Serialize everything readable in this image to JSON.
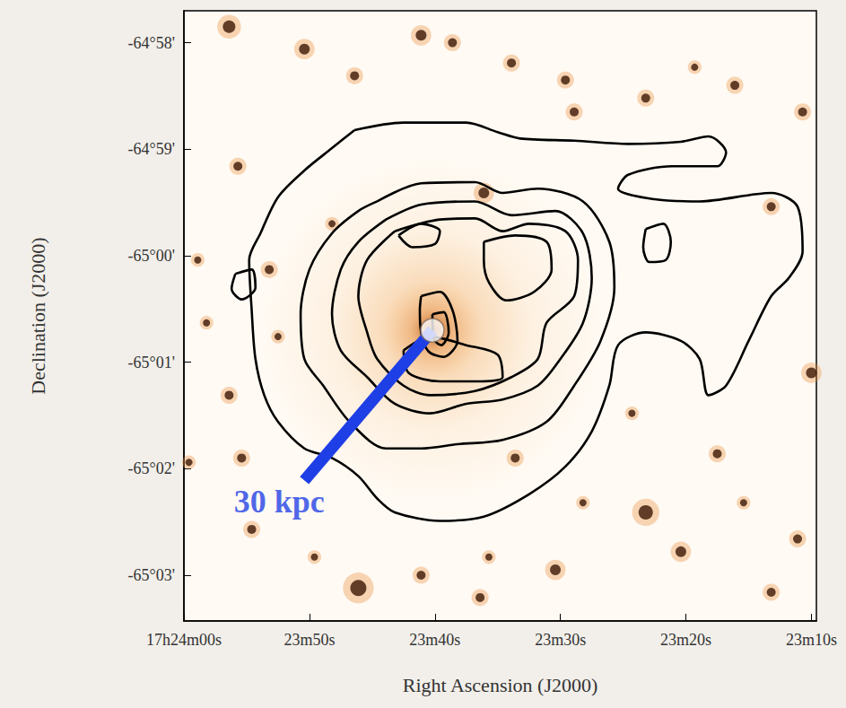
{
  "chart_data": {
    "type": "contour",
    "x_label": "Right Ascension (J2000)",
    "y_label": "Declination (J2000)",
    "xlim": [
      62640,
      62589.6
    ],
    "xticks": [
      {
        "value": 62640,
        "label": "17h24m00s"
      },
      {
        "value": 62630,
        "label": "23m50s"
      },
      {
        "value": 62620,
        "label": "23m40s"
      },
      {
        "value": 62610,
        "label": "23m30s"
      },
      {
        "value": 62600,
        "label": "23m20s"
      },
      {
        "value": 62590,
        "label": "23m10s"
      }
    ],
    "ylim": [
      -3903.43,
      -3897.7
    ],
    "yticks": [
      {
        "value": -3898,
        "label": "-64°58'"
      },
      {
        "value": -3899,
        "label": "-64°59'"
      },
      {
        "value": -3900,
        "label": "-65°00'"
      },
      {
        "value": -3901,
        "label": "-65°01'"
      },
      {
        "value": -3902,
        "label": "-65°02'"
      },
      {
        "value": -3903,
        "label": "-65°03'"
      }
    ],
    "color": "#000000",
    "contours": [
      [
        [
          62626.4,
          -3898.82
        ],
        [
          62622.5,
          -3898.75
        ],
        [
          62617.5,
          -3898.75
        ],
        [
          62615.0,
          -3898.84
        ],
        [
          62613.2,
          -3898.9
        ],
        [
          62608.9,
          -3898.92
        ],
        [
          62604.6,
          -3898.95
        ],
        [
          62600.4,
          -3898.93
        ],
        [
          62598.2,
          -3898.88
        ],
        [
          62596.8,
          -3899.03
        ],
        [
          62597.5,
          -3899.16
        ],
        [
          62601.1,
          -3899.16
        ],
        [
          62604.6,
          -3899.24
        ],
        [
          62605.4,
          -3899.37
        ],
        [
          62602.5,
          -3899.47
        ],
        [
          62598.9,
          -3899.49
        ],
        [
          62593.2,
          -3899.41
        ],
        [
          62591.1,
          -3899.54
        ],
        [
          62590.7,
          -3899.96
        ],
        [
          62591.8,
          -3900.21
        ],
        [
          62593.2,
          -3900.38
        ],
        [
          62595.0,
          -3900.8
        ],
        [
          62596.8,
          -3901.22
        ],
        [
          62598.2,
          -3901.31
        ],
        [
          62598.9,
          -3900.97
        ],
        [
          62600.4,
          -3900.8
        ],
        [
          62603.2,
          -3900.72
        ],
        [
          62605.4,
          -3900.84
        ],
        [
          62606.1,
          -3901.22
        ],
        [
          62607.5,
          -3901.65
        ],
        [
          62609.6,
          -3901.98
        ],
        [
          62612.5,
          -3902.24
        ],
        [
          62616.1,
          -3902.45
        ],
        [
          62619.6,
          -3902.49
        ],
        [
          62623.2,
          -3902.41
        ],
        [
          62624.6,
          -3902.28
        ],
        [
          62626.1,
          -3902.07
        ],
        [
          62628.2,
          -3901.9
        ],
        [
          62630.4,
          -3901.81
        ],
        [
          62632.5,
          -3901.56
        ],
        [
          62633.6,
          -3901.31
        ],
        [
          62634.3,
          -3900.97
        ],
        [
          62634.6,
          -3900.51
        ],
        [
          62634.8,
          -3900.04
        ],
        [
          62633.9,
          -3899.79
        ],
        [
          62632.5,
          -3899.45
        ],
        [
          62630.4,
          -3899.2
        ],
        [
          62628.2,
          -3898.99
        ]
      ],
      [
        [
          62624.6,
          -3899.49
        ],
        [
          62621.1,
          -3899.32
        ],
        [
          62616.8,
          -3899.31
        ],
        [
          62614.6,
          -3899.41
        ],
        [
          62611.8,
          -3899.37
        ],
        [
          62608.2,
          -3899.49
        ],
        [
          62606.1,
          -3899.87
        ],
        [
          62605.7,
          -3900.3
        ],
        [
          62606.8,
          -3900.8
        ],
        [
          62608.9,
          -3901.22
        ],
        [
          62611.1,
          -3901.56
        ],
        [
          62614.6,
          -3901.73
        ],
        [
          62618.2,
          -3901.77
        ],
        [
          62621.1,
          -3901.81
        ],
        [
          62623.9,
          -3901.81
        ],
        [
          62626.8,
          -3901.56
        ],
        [
          62628.9,
          -3901.22
        ],
        [
          62630.4,
          -3900.97
        ],
        [
          62630.7,
          -3900.55
        ],
        [
          62630.0,
          -3900.13
        ],
        [
          62628.2,
          -3899.79
        ],
        [
          62626.1,
          -3899.58
        ]
      ],
      [
        [
          62623.9,
          -3899.66
        ],
        [
          62621.1,
          -3899.52
        ],
        [
          62616.8,
          -3899.49
        ],
        [
          62613.9,
          -3899.62
        ],
        [
          62610.4,
          -3899.58
        ],
        [
          62608.2,
          -3899.79
        ],
        [
          62607.5,
          -3900.21
        ],
        [
          62608.2,
          -3900.63
        ],
        [
          62610.0,
          -3900.97
        ],
        [
          62611.8,
          -3901.22
        ],
        [
          62614.6,
          -3901.35
        ],
        [
          62617.5,
          -3901.39
        ],
        [
          62620.4,
          -3901.48
        ],
        [
          62623.2,
          -3901.39
        ],
        [
          62625.4,
          -3901.14
        ],
        [
          62627.5,
          -3900.89
        ],
        [
          62628.2,
          -3900.55
        ],
        [
          62627.5,
          -3900.13
        ],
        [
          62626.1,
          -3899.87
        ]
      ],
      [
        [
          62623.2,
          -3899.77
        ],
        [
          62619.6,
          -3899.66
        ],
        [
          62616.8,
          -3899.65
        ],
        [
          62614.6,
          -3899.77
        ],
        [
          62612.5,
          -3899.7
        ],
        [
          62609.6,
          -3899.77
        ],
        [
          62608.6,
          -3900.04
        ],
        [
          62608.9,
          -3900.38
        ],
        [
          62611.1,
          -3900.63
        ],
        [
          62611.8,
          -3900.97
        ],
        [
          62613.9,
          -3901.14
        ],
        [
          62616.8,
          -3901.27
        ],
        [
          62620.4,
          -3901.31
        ],
        [
          62622.5,
          -3901.22
        ],
        [
          62624.6,
          -3900.97
        ],
        [
          62625.4,
          -3900.72
        ],
        [
          62626.1,
          -3900.38
        ],
        [
          62625.4,
          -3900.04
        ]
      ],
      [
        [
          62622.9,
          -3899.81
        ],
        [
          62621.1,
          -3899.7
        ],
        [
          62619.6,
          -3899.77
        ],
        [
          62620.0,
          -3899.89
        ],
        [
          62621.8,
          -3899.92
        ]
      ],
      [
        [
          62616.1,
          -3899.87
        ],
        [
          62613.6,
          -3899.81
        ],
        [
          62611.1,
          -3899.87
        ],
        [
          62610.7,
          -3900.13
        ],
        [
          62612.1,
          -3900.34
        ],
        [
          62614.3,
          -3900.42
        ],
        [
          62615.7,
          -3900.25
        ],
        [
          62616.1,
          -3900.04
        ]
      ],
      [
        [
          62622.5,
          -3900.89
        ],
        [
          62620.4,
          -3900.76
        ],
        [
          62617.5,
          -3900.84
        ],
        [
          62615.0,
          -3900.93
        ],
        [
          62614.6,
          -3901.14
        ],
        [
          62616.8,
          -3901.18
        ],
        [
          62619.6,
          -3901.18
        ],
        [
          62622.1,
          -3901.1
        ]
      ],
      [
        [
          62621.1,
          -3900.38
        ],
        [
          62619.6,
          -3900.34
        ],
        [
          62618.6,
          -3900.51
        ],
        [
          62618.2,
          -3900.8
        ],
        [
          62619.3,
          -3900.95
        ],
        [
          62620.5,
          -3900.9
        ],
        [
          62621.1,
          -3900.72
        ],
        [
          62621.2,
          -3900.51
        ]
      ],
      [
        [
          62620.2,
          -3900.55
        ],
        [
          62619.3,
          -3900.53
        ],
        [
          62618.9,
          -3900.72
        ],
        [
          62619.5,
          -3900.84
        ],
        [
          62620.1,
          -3900.78
        ]
      ],
      [
        [
          62603.2,
          -3899.75
        ],
        [
          62601.8,
          -3899.7
        ],
        [
          62601.2,
          -3899.87
        ],
        [
          62601.6,
          -3900.04
        ],
        [
          62602.9,
          -3900.06
        ],
        [
          62603.4,
          -3899.92
        ]
      ],
      [
        [
          62635.9,
          -3900.17
        ],
        [
          62634.6,
          -3900.13
        ],
        [
          62634.3,
          -3900.3
        ],
        [
          62635.4,
          -3900.41
        ],
        [
          62636.2,
          -3900.31
        ]
      ]
    ],
    "sources": {
      "ra": [
        62636.4,
        62630.4,
        62626.4,
        62621.1,
        62618.6,
        62613.9,
        62609.6,
        62608.9,
        62603.2,
        62599.3,
        62596.1,
        62590.7,
        62593.2,
        62635.7,
        62638.9,
        62633.2,
        62638.2,
        62632.5,
        62636.4,
        62635.4,
        62639.6,
        62634.6,
        62626.1,
        62621.1,
        62616.4,
        62615.7,
        62610.4,
        62603.2,
        62597.5,
        62600.4,
        62593.2,
        62591.1,
        62590.0,
        62616.1,
        62628.2,
        62613.6,
        62608.2,
        62604.3,
        62595.4,
        62629.6
      ],
      "dec": [
        -3897.85,
        -3898.06,
        -3898.31,
        -3897.93,
        -3898.0,
        -3898.19,
        -3898.35,
        -3898.65,
        -3898.52,
        -3898.23,
        -3898.4,
        -3898.65,
        -3899.54,
        -3899.16,
        -3900.04,
        -3900.13,
        -3900.63,
        -3900.76,
        -3901.31,
        -3901.9,
        -3901.94,
        -3902.57,
        -3903.12,
        -3903.0,
        -3903.21,
        -3902.83,
        -3902.95,
        -3902.41,
        -3901.86,
        -3902.78,
        -3903.16,
        -3902.66,
        -3901.1,
        -3899.41,
        -3899.7,
        -3901.9,
        -3902.32,
        -3901.48,
        -3902.32,
        -3902.83
      ],
      "size": [
        14,
        12,
        10,
        12,
        10,
        10,
        10,
        10,
        10,
        8,
        10,
        10,
        10,
        10,
        8,
        10,
        8,
        8,
        10,
        10,
        8,
        10,
        18,
        10,
        10,
        8,
        12,
        16,
        10,
        12,
        10,
        10,
        12,
        12,
        8,
        10,
        8,
        8,
        8,
        8
      ]
    },
    "galaxy": {
      "ra": 62620.2,
      "dec": -3900.7
    },
    "scale_bar": {
      "label": "30 kpc",
      "end": [
        62630.4,
        -3902.11
      ],
      "color": "#1f3fe6"
    }
  }
}
